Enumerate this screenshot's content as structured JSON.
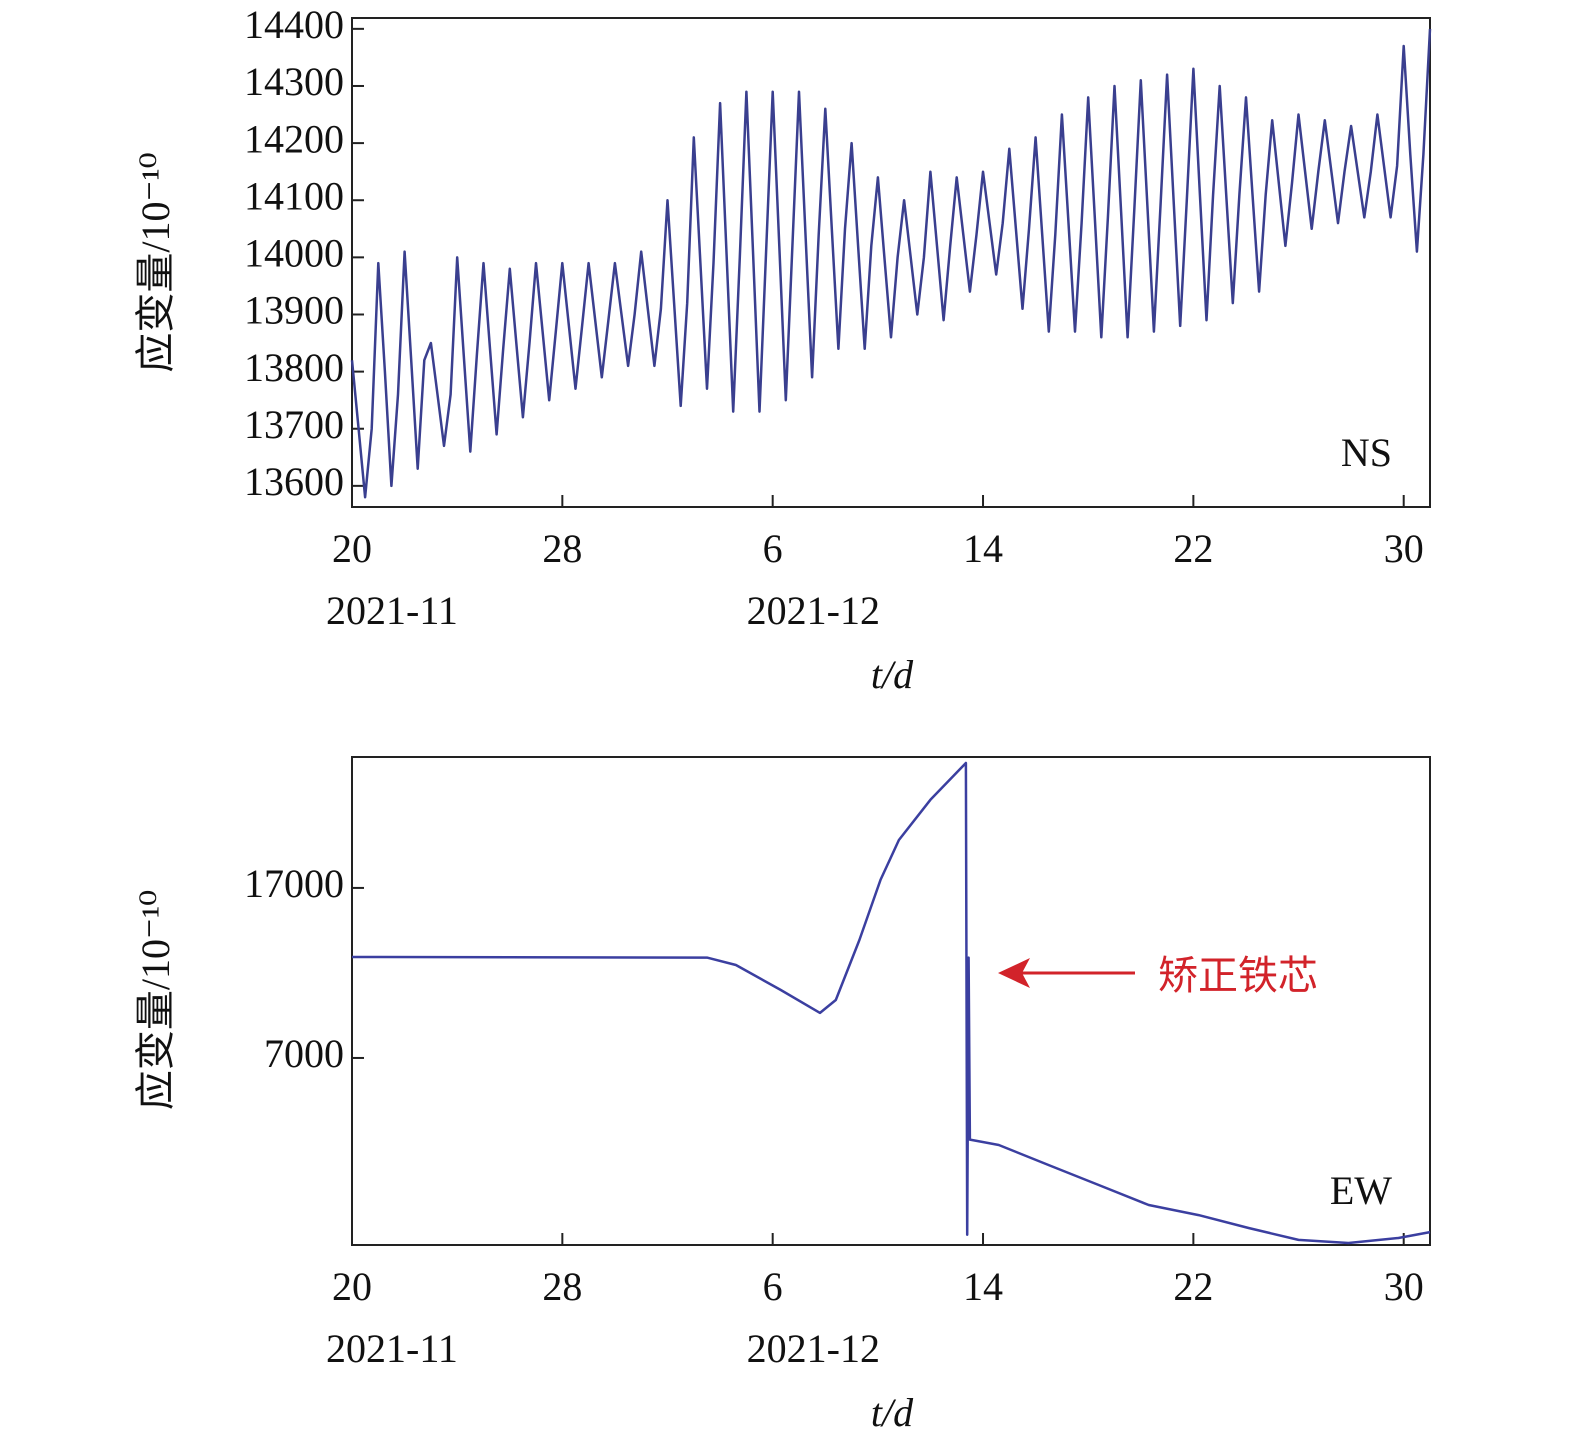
{
  "chart_data": [
    {
      "type": "line",
      "label": "NS",
      "y_label": "应变量/10⁻¹⁰",
      "x_label": "t/d",
      "xlim": [
        0,
        41
      ],
      "ylim": [
        13563,
        14419
      ],
      "xticks": [
        {
          "value": 0,
          "label": "20"
        },
        {
          "value": 8,
          "label": "28"
        },
        {
          "value": 16,
          "label": "6"
        },
        {
          "value": 24,
          "label": "14"
        },
        {
          "value": 32,
          "label": "22"
        },
        {
          "value": 40,
          "label": "30"
        }
      ],
      "xtick_groups": [
        {
          "value": 0,
          "label": "2021-11"
        },
        {
          "value": 16,
          "label": "2021-12"
        }
      ],
      "yticks": [
        13600,
        13700,
        13800,
        13900,
        14000,
        14100,
        14200,
        14300,
        14400
      ],
      "x": [
        0,
        0.25,
        0.5,
        0.75,
        1,
        1.25,
        1.5,
        1.75,
        2,
        2.25,
        2.5,
        2.75,
        3,
        3.25,
        3.5,
        3.75,
        4,
        4.25,
        4.5,
        4.75,
        5,
        5.25,
        5.5,
        5.75,
        6,
        6.25,
        6.5,
        6.75,
        7,
        7.25,
        7.5,
        7.75,
        8,
        8.25,
        8.5,
        8.75,
        9,
        9.25,
        9.5,
        9.75,
        10,
        10.25,
        10.5,
        10.75,
        11,
        11.25,
        11.5,
        11.75,
        12,
        12.25,
        12.5,
        12.75,
        13,
        13.25,
        13.5,
        13.75,
        14,
        14.25,
        14.5,
        14.75,
        15,
        15.25,
        15.5,
        15.75,
        16,
        16.25,
        16.5,
        16.75,
        17,
        17.25,
        17.5,
        17.75,
        18,
        18.25,
        18.5,
        18.75,
        19,
        19.25,
        19.5,
        19.75,
        20,
        20.25,
        20.5,
        20.75,
        21,
        21.25,
        21.5,
        21.75,
        22,
        22.25,
        22.5,
        22.75,
        23,
        23.25,
        23.5,
        23.75,
        24,
        24.25,
        24.5,
        24.75,
        25,
        25.25,
        25.5,
        25.75,
        26,
        26.25,
        26.5,
        26.75,
        27,
        27.25,
        27.5,
        27.75,
        28,
        28.25,
        28.5,
        28.75,
        29,
        29.25,
        29.5,
        29.75,
        30,
        30.25,
        30.5,
        30.75,
        31,
        31.25,
        31.5,
        31.75,
        32,
        32.25,
        32.5,
        32.75,
        33,
        33.25,
        33.5,
        33.75,
        34,
        34.25,
        34.5,
        34.75,
        35,
        35.25,
        35.5,
        35.75,
        36,
        36.25,
        36.5,
        36.75,
        37,
        37.25,
        37.5,
        37.75,
        38,
        38.25,
        38.5,
        38.75,
        39,
        39.25,
        39.5,
        39.75,
        40,
        40.25,
        40.5,
        40.75,
        41
      ],
      "series": [
        {
          "color": "#3a3f8f",
          "values": [
            13820,
            13700,
            13580,
            13700,
            13990,
            13800,
            13600,
            13760,
            14010,
            13820,
            13630,
            13820,
            13850,
            13760,
            13670,
            13760,
            14000,
            13830,
            13660,
            13830,
            13990,
            13840,
            13690,
            13840,
            13980,
            13850,
            13720,
            13850,
            13990,
            13870,
            13750,
            13870,
            13990,
            13880,
            13770,
            13880,
            13990,
            13890,
            13790,
            13890,
            13990,
            13900,
            13810,
            13900,
            14010,
            13910,
            13810,
            13910,
            14100,
            13920,
            13740,
            13920,
            14210,
            13990,
            13770,
            13990,
            14270,
            14000,
            13730,
            14000,
            14290,
            14010,
            13730,
            14010,
            14290,
            14020,
            13750,
            14020,
            14290,
            14040,
            13790,
            14040,
            14260,
            14050,
            13840,
            14050,
            14200,
            14020,
            13840,
            14020,
            14140,
            14000,
            13860,
            14000,
            14100,
            14000,
            13900,
            14000,
            14150,
            14020,
            13890,
            14020,
            14140,
            14040,
            13940,
            14040,
            14150,
            14060,
            13970,
            14060,
            14190,
            14050,
            13910,
            14050,
            14210,
            14040,
            13870,
            14040,
            14250,
            14060,
            13870,
            14060,
            14280,
            14070,
            13860,
            14070,
            14300,
            14080,
            13860,
            14080,
            14310,
            14090,
            13870,
            14090,
            14320,
            14100,
            13880,
            14100,
            14330,
            14110,
            13890,
            14110,
            14300,
            14110,
            13920,
            14110,
            14280,
            14110,
            13940,
            14110,
            14240,
            14130,
            14020,
            14130,
            14250,
            14150,
            14050,
            14150,
            14240,
            14150,
            14060,
            14150,
            14230,
            14150,
            14070,
            14150,
            14250,
            14160,
            14070,
            14160,
            14370,
            14180,
            14010,
            14180,
            14400
          ]
        }
      ]
    },
    {
      "type": "line",
      "label": "EW",
      "y_label": "应变量/10⁻¹⁰",
      "x_label": "t/d",
      "annotation": "矫正铁芯",
      "xlim": [
        0,
        41
      ],
      "ylim": [
        -4000,
        24700
      ],
      "xticks": [
        {
          "value": 0,
          "label": "20"
        },
        {
          "value": 8,
          "label": "28"
        },
        {
          "value": 16,
          "label": "6"
        },
        {
          "value": 24,
          "label": "14"
        },
        {
          "value": 32,
          "label": "22"
        },
        {
          "value": 40,
          "label": "30"
        }
      ],
      "xtick_groups": [
        {
          "value": 0,
          "label": "2021-11"
        },
        {
          "value": 16,
          "label": "2021-12"
        }
      ],
      "yticks": [
        7000,
        17000
      ],
      "x": [
        0,
        13.5,
        14.6,
        16.3,
        17.8,
        18.4,
        19.3,
        20.1,
        20.8,
        22,
        23.35,
        23.4,
        23.45,
        23.5,
        24.6,
        26.5,
        28.4,
        30.3,
        32.2,
        34.1,
        36,
        37.9,
        39.8,
        41
      ],
      "series": [
        {
          "color": "#3b3fa0",
          "values": [
            12940,
            12900,
            12470,
            11000,
            9650,
            10410,
            13940,
            17470,
            19820,
            22180,
            24350,
            -3400,
            12900,
            2200,
            1880,
            700,
            -470,
            -1650,
            -2240,
            -3000,
            -3700,
            -3880,
            -3590,
            -3240
          ]
        }
      ]
    }
  ]
}
